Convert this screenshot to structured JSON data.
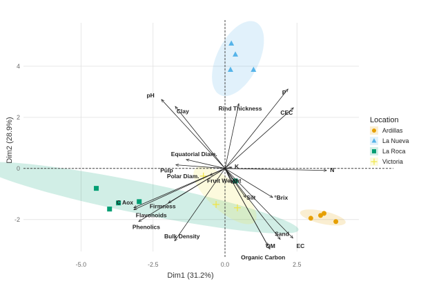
{
  "chart_data": {
    "type": "scatter",
    "subtype": "pca-biplot",
    "xlabel": "Dim1 (31.2%)",
    "ylabel": "Dim2 (28.9%)",
    "xlim": [
      -7.0,
      4.65
    ],
    "ylim": [
      -3.25,
      5.7
    ],
    "x_ticks": [
      -5.0,
      -2.5,
      0.0,
      2.5
    ],
    "x_tick_labels": [
      "-5.0",
      "-2.5",
      "0.0",
      "2.5"
    ],
    "y_ticks": [
      -2,
      0,
      2,
      4
    ],
    "y_tick_labels": [
      "-2",
      "0",
      "2",
      "4"
    ],
    "grid": true,
    "reference_lines": {
      "x": 0,
      "y": 0,
      "style": "dashed"
    },
    "legend": {
      "title": "Location",
      "position": "right",
      "entries": [
        {
          "name": "Ardillas",
          "marker": "circle",
          "color": "#E69F00"
        },
        {
          "name": "La Nueva",
          "marker": "triangle",
          "color": "#56B4E9"
        },
        {
          "name": "La Roca",
          "marker": "square",
          "color": "#009E73"
        },
        {
          "name": "Victoria",
          "marker": "cross",
          "color": "#F0E442"
        }
      ]
    },
    "groups": [
      {
        "name": "Ardillas",
        "points": [
          [
            2.98,
            -1.95
          ],
          [
            3.32,
            -1.84
          ],
          [
            3.44,
            -1.76
          ],
          [
            3.85,
            -2.08
          ]
        ],
        "ellipse": {
          "center": [
            3.4,
            -1.92
          ],
          "rx": 0.95,
          "ry": 0.25,
          "angle_deg": -12
        }
      },
      {
        "name": "La Nueva",
        "points": [
          [
            0.22,
            4.89
          ],
          [
            0.36,
            4.46
          ],
          [
            0.19,
            3.86
          ],
          [
            0.99,
            3.86
          ]
        ],
        "ellipse": {
          "center": [
            0.45,
            4.3
          ],
          "rx": 1.6,
          "ry": 0.85,
          "angle_deg": 62
        }
      },
      {
        "name": "La Roca",
        "points": [
          [
            -4.47,
            -0.78
          ],
          [
            -4.01,
            -1.59
          ],
          [
            -3.7,
            -1.35
          ],
          [
            -2.98,
            -1.3
          ],
          [
            0.36,
            -0.49
          ]
        ],
        "ellipse": {
          "center": [
            -2.95,
            -1.15
          ],
          "rx": 6.6,
          "ry": 0.62,
          "angle_deg": -11
        }
      },
      {
        "name": "Victoria",
        "points": [
          [
            -0.31,
            -1.41
          ],
          [
            0.43,
            -1.54
          ],
          [
            -0.75,
            -0.3
          ]
        ],
        "ellipse": {
          "center": [
            0.0,
            -1.05
          ],
          "rx": 1.6,
          "ry": 0.62,
          "angle_deg": -40
        }
      }
    ],
    "variables": [
      {
        "name": "pH",
        "x": -2.21,
        "y": 2.7
      },
      {
        "name": "Clay",
        "x": -1.73,
        "y": 2.43
      },
      {
        "name": "Rind Thickness",
        "x": 0.48,
        "y": 2.54
      },
      {
        "name": "P",
        "x": 2.19,
        "y": 3.11
      },
      {
        "name": "CEC",
        "x": 2.38,
        "y": 2.38
      },
      {
        "name": "Equatorial Diam.",
        "x": -1.35,
        "y": 0.35
      },
      {
        "name": "Pulp",
        "x": -1.71,
        "y": 0.14
      },
      {
        "name": "K",
        "x": 0.24,
        "y": 0.05
      },
      {
        "name": "N",
        "x": 3.53,
        "y": -0.08
      },
      {
        "name": "Polar Diam.",
        "x": -0.53,
        "y": -0.27
      },
      {
        "name": "Fruit Weight",
        "x": 0.24,
        "y": -0.59
      },
      {
        "name": "Firmness",
        "x": -1.97,
        "y": -1.35
      },
      {
        "name": "C Aox",
        "x": -3.17,
        "y": -1.54
      },
      {
        "name": "Flavonoids",
        "x": -3.17,
        "y": -1.62
      },
      {
        "name": "Phenolics",
        "x": -3.0,
        "y": -2.08
      },
      {
        "name": "Bulk Density",
        "x": -1.75,
        "y": -2.84
      },
      {
        "name": "Silt",
        "x": 0.72,
        "y": -1.14
      },
      {
        "name": "°Brix",
        "x": 1.66,
        "y": -1.14
      },
      {
        "name": "Sand",
        "x": 1.92,
        "y": -2.78
      },
      {
        "name": "EC",
        "x": 2.36,
        "y": -2.73
      },
      {
        "name": "OM",
        "x": 1.49,
        "y": -3.03
      },
      {
        "name": "Organic Carbon",
        "x": 1.56,
        "y": -3.16
      }
    ]
  }
}
